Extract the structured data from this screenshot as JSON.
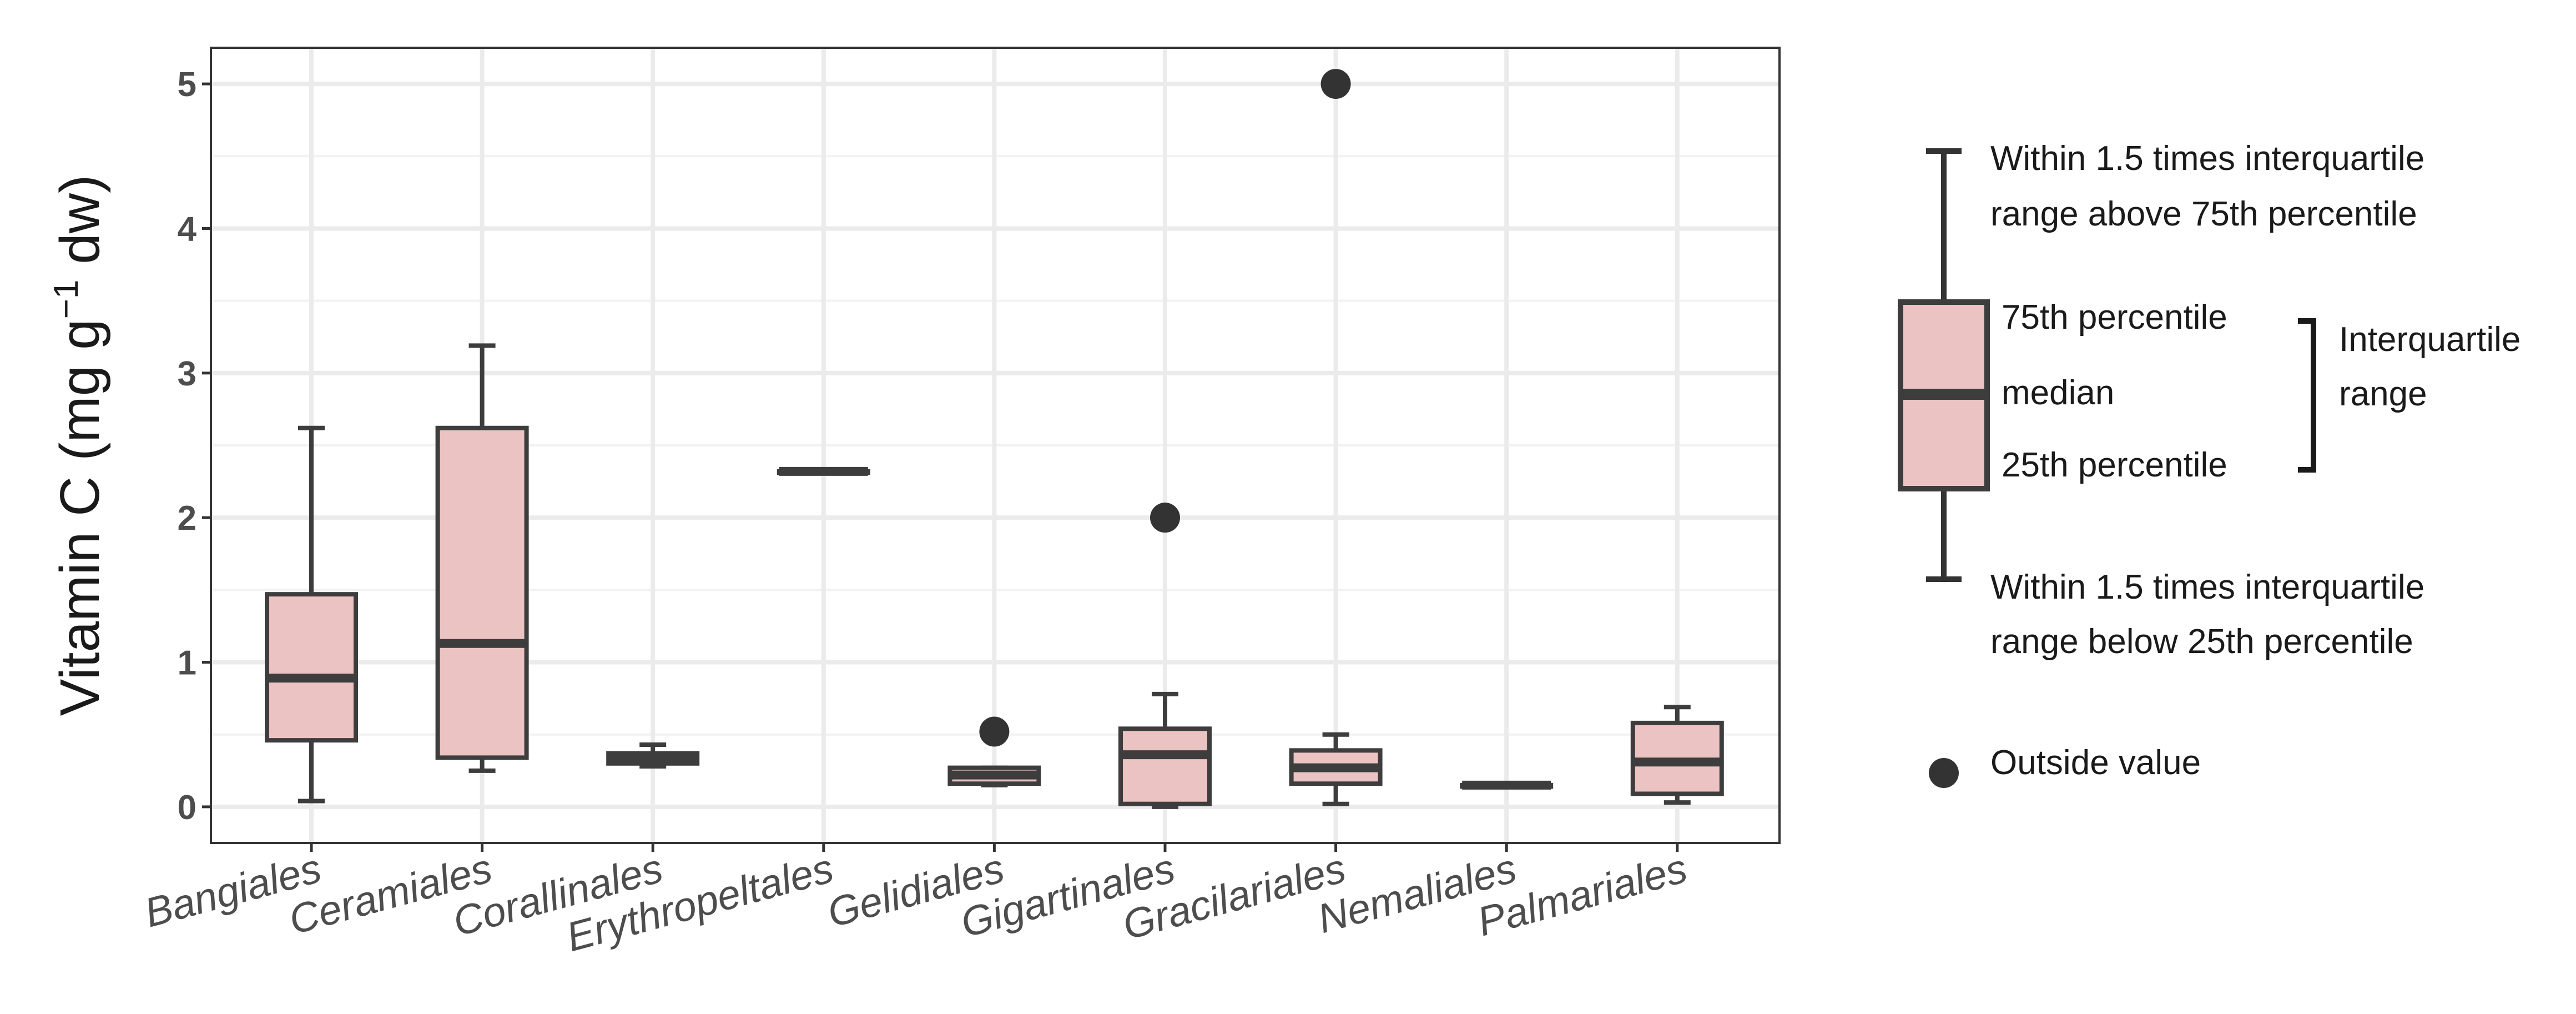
{
  "chart_data": {
    "type": "boxplot",
    "ylabel": {
      "main": "Vitamin C (mg g",
      "sup": "−1",
      "tail": " dw)"
    },
    "ylim": [
      -0.25,
      5.25
    ],
    "yticks": [
      0,
      1,
      2,
      3,
      4,
      5
    ],
    "grid": true,
    "box_fill": "#ebc3c3",
    "box_stroke": "#3d3d3d",
    "categories": [
      "Bangiales",
      "Ceramiales",
      "Corallinales",
      "Erythropeltales",
      "Gelidiales",
      "Gigartinales",
      "Gracilariales",
      "Nemaliales",
      "Palmariales"
    ],
    "boxes": [
      {
        "category": "Bangiales",
        "whisker_low": 0.04,
        "q1": 0.46,
        "median": 0.89,
        "q3": 1.47,
        "whisker_high": 2.62,
        "outliers": []
      },
      {
        "category": "Ceramiales",
        "whisker_low": 0.25,
        "q1": 0.34,
        "median": 1.13,
        "q3": 2.62,
        "whisker_high": 3.19,
        "outliers": []
      },
      {
        "category": "Corallinales",
        "whisker_low": 0.28,
        "q1": 0.3,
        "median": 0.33,
        "q3": 0.37,
        "whisker_high": 0.43,
        "outliers": []
      },
      {
        "category": "Erythropeltales",
        "whisker_low": 2.31,
        "q1": 2.31,
        "median": 2.32,
        "q3": 2.32,
        "whisker_high": 2.33,
        "outliers": []
      },
      {
        "category": "Gelidiales",
        "whisker_low": 0.15,
        "q1": 0.16,
        "median": 0.22,
        "q3": 0.27,
        "whisker_high": 0.27,
        "outliers": [
          0.52
        ]
      },
      {
        "category": "Gigartinales",
        "whisker_low": 0.0,
        "q1": 0.02,
        "median": 0.36,
        "q3": 0.54,
        "whisker_high": 0.78,
        "outliers": [
          2.0
        ]
      },
      {
        "category": "Gracilariales",
        "whisker_low": 0.02,
        "q1": 0.16,
        "median": 0.27,
        "q3": 0.39,
        "whisker_high": 0.5,
        "outliers": [
          5.0
        ]
      },
      {
        "category": "Nemaliales",
        "whisker_low": 0.14,
        "q1": 0.14,
        "median": 0.15,
        "q3": 0.15,
        "whisker_high": 0.16,
        "outliers": []
      },
      {
        "category": "Palmariales",
        "whisker_low": 0.03,
        "q1": 0.09,
        "median": 0.31,
        "q3": 0.58,
        "whisker_high": 0.69,
        "outliers": []
      }
    ]
  },
  "legend": {
    "upper_whisker_line1": "Within 1.5 times interquartile",
    "upper_whisker_line2": "range above 75th percentile",
    "q3_label": "75th percentile",
    "median_label": "median",
    "q1_label": "25th percentile",
    "iqr_line1": "Interquartile",
    "iqr_line2": "range",
    "lower_whisker_line1": "Within 1.5 times interquartile",
    "lower_whisker_line2": "range below 25th percentile",
    "outlier_label": "Outside value"
  }
}
